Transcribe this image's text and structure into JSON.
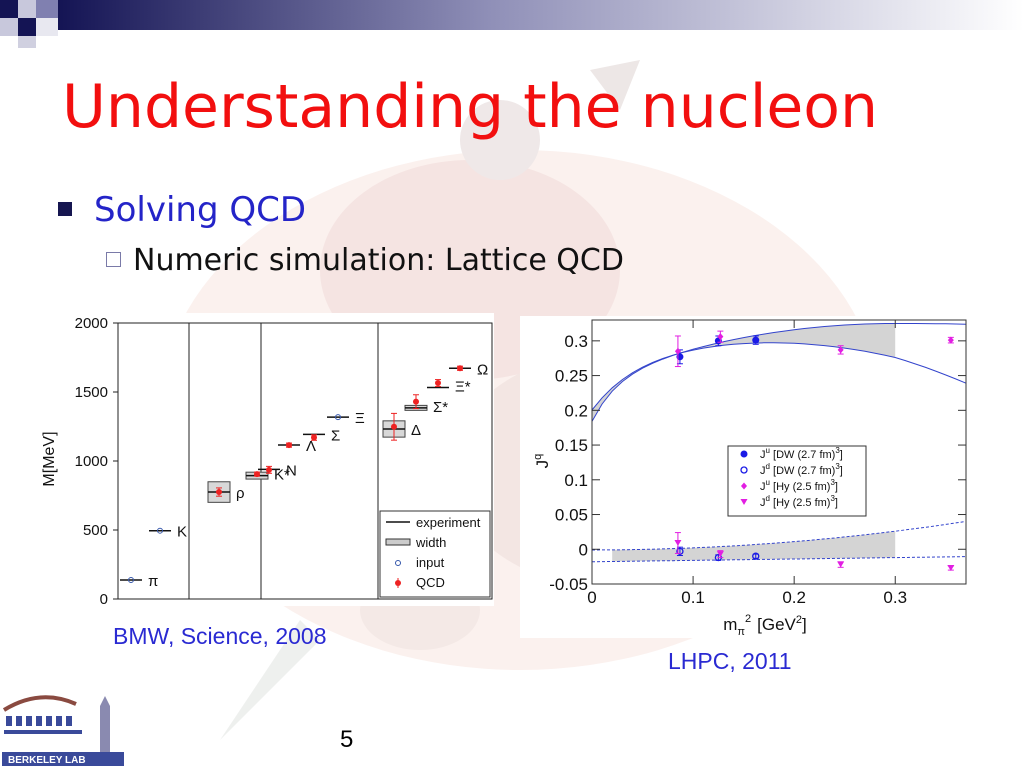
{
  "slide": {
    "title": "Understanding the nucleon",
    "bullet1": "Solving QCD",
    "bullet2": "Numeric simulation: Lattice QCD",
    "caption_left": "BMW, Science, 2008",
    "caption_right": "LHPC, 2011",
    "page_number": "5",
    "logo_text": "BERKELEY LAB",
    "colors": {
      "title": "#f20f0f",
      "bullet1": "#2424c8",
      "caption": "#2a2ad2"
    }
  },
  "chart_data": [
    {
      "type": "scatter",
      "ylabel": "M[MeV]",
      "ylim": [
        0,
        2000
      ],
      "yticks": [
        0,
        500,
        1000,
        1500,
        2000
      ],
      "legend": [
        "experiment",
        "width",
        "input",
        "QCD"
      ],
      "legend_position": "bottom-right",
      "columns": 4,
      "particles": [
        {
          "label": "π",
          "column": 0,
          "slot": 0,
          "exp": 138,
          "kind": "input"
        },
        {
          "label": "K",
          "column": 0,
          "slot": 1,
          "exp": 495,
          "kind": "input"
        },
        {
          "label": "ρ",
          "column": 1,
          "slot": 0,
          "exp": 775,
          "width": 149,
          "qcd": 775,
          "err": 30
        },
        {
          "label": "K*",
          "column": 1,
          "slot": 1,
          "exp": 894,
          "width": 50,
          "qcd": 905,
          "err": 15
        },
        {
          "label": "N",
          "column": 2,
          "slot": 0,
          "exp": 939,
          "qcd": 936,
          "err": 25
        },
        {
          "label": "Λ",
          "column": 2,
          "slot": 1,
          "exp": 1116,
          "qcd": 1115,
          "err": 15
        },
        {
          "label": "Σ",
          "column": 2,
          "slot": 2,
          "exp": 1193,
          "qcd": 1170,
          "err": 20
        },
        {
          "label": "Ξ",
          "column": 2,
          "slot": 3,
          "exp": 1318,
          "kind": "input"
        },
        {
          "label": "Δ",
          "column": 3,
          "slot": 0,
          "exp": 1232,
          "width": 118,
          "qcd": 1248,
          "err": 97
        },
        {
          "label": "Σ*",
          "column": 3,
          "slot": 1,
          "exp": 1385,
          "width": 36,
          "qcd": 1430,
          "err": 50
        },
        {
          "label": "Ξ*",
          "column": 3,
          "slot": 2,
          "exp": 1533,
          "qcd": 1565,
          "err": 25
        },
        {
          "label": "Ω",
          "column": 3,
          "slot": 3,
          "exp": 1672,
          "qcd": 1672,
          "err": 15
        }
      ]
    },
    {
      "type": "scatter",
      "xlabel_main": "m",
      "xlabel_sub": "π",
      "xlabel_sup": "2",
      "xlabel_unit": "[GeV",
      "xlabel_unit_sup": "2",
      "xlabel_unit_end": "]",
      "ylabel_main": "J",
      "ylabel_sup": "q",
      "xlim": [
        0,
        0.37
      ],
      "ylim": [
        -0.05,
        0.33
      ],
      "xticks": [
        0,
        0.1,
        0.2,
        0.3
      ],
      "xtick_labels": [
        "0",
        "0.1",
        "0.2",
        "0.3"
      ],
      "yticks": [
        -0.05,
        0,
        0.05,
        0.1,
        0.15,
        0.2,
        0.25,
        0.3
      ],
      "ytick_labels": [
        "-0.05",
        "0",
        "0.05",
        "0.1",
        "0.15",
        "0.2",
        "0.25",
        "0.3"
      ],
      "legend_position": "center-right",
      "series": [
        {
          "name": "J",
          "sup": "u",
          "text": "[DW (2.7 fm)",
          "sup2": "3",
          "end": "]",
          "color": "#1a1ae6",
          "marker": "filled-circle",
          "x": [
            0.087,
            0.125,
            0.162
          ],
          "y": [
            0.277,
            0.3,
            0.301
          ],
          "err": [
            0.01,
            0.007,
            0.006
          ]
        },
        {
          "name": "J",
          "sup": "d",
          "text": "[DW (2.7 fm)",
          "sup2": "3",
          "end": "]",
          "color": "#1a1ae6",
          "marker": "open-circle",
          "x": [
            0.087,
            0.125,
            0.162
          ],
          "y": [
            -0.003,
            -0.012,
            -0.01
          ],
          "err": [
            0.006,
            0.004,
            0.003
          ]
        },
        {
          "name": "J",
          "sup": "u",
          "text": "[Hy  (2.5 fm)",
          "sup2": "3",
          "end": "]",
          "color": "#e21ee2",
          "marker": "diamond",
          "x": [
            0.085,
            0.127,
            0.246,
            0.355
          ],
          "y": [
            0.285,
            0.306,
            0.287,
            0.301
          ],
          "err": [
            0.022,
            0.008,
            0.006,
            0.004
          ]
        },
        {
          "name": "J",
          "sup": "d",
          "text": "[Hy  (2.5 fm)",
          "sup2": "3",
          "end": "]",
          "color": "#e21ee2",
          "marker": "triangle-down",
          "x": [
            0.085,
            0.127,
            0.246,
            0.355
          ],
          "y": [
            0.009,
            -0.007,
            -0.022,
            -0.027
          ],
          "err": [
            0.015,
            0.005,
            0.004,
            0.003
          ]
        }
      ]
    }
  ]
}
